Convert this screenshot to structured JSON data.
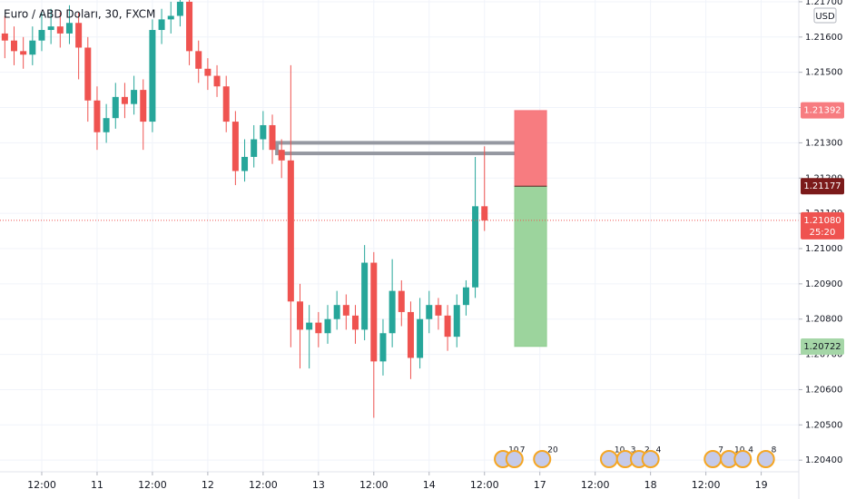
{
  "chart_data": {
    "type": "candlestick",
    "title": "Euro / ABD Doları, 30, FXCM",
    "currency": "USD",
    "up_color": "#26a69a",
    "down_color": "#ef5350",
    "grid": true,
    "xlim": [
      -18.1,
      328.3
    ],
    "ylim": [
      1.20367,
      1.21705
    ],
    "xticks": [
      {
        "value": 0,
        "label": "12:00"
      },
      {
        "value": 24,
        "label": "11"
      },
      {
        "value": 48,
        "label": "12:00"
      },
      {
        "value": 72,
        "label": "12"
      },
      {
        "value": 96,
        "label": "12:00"
      },
      {
        "value": 120,
        "label": "13"
      },
      {
        "value": 144,
        "label": "12:00"
      },
      {
        "value": 168,
        "label": "14"
      },
      {
        "value": 192,
        "label": "12:00"
      },
      {
        "value": 216,
        "label": "17"
      },
      {
        "value": 240,
        "label": "12:00"
      },
      {
        "value": 264,
        "label": "18"
      },
      {
        "value": 288,
        "label": "12:00"
      },
      {
        "value": 312,
        "label": "19"
      }
    ],
    "yticks": [
      {
        "value": 1.204,
        "label": "1.20400"
      },
      {
        "value": 1.205,
        "label": "1.20500"
      },
      {
        "value": 1.206,
        "label": "1.20600"
      },
      {
        "value": 1.207,
        "label": "1.20700"
      },
      {
        "value": 1.208,
        "label": "1.20800"
      },
      {
        "value": 1.209,
        "label": "1.20900"
      },
      {
        "value": 1.21,
        "label": "1.21000"
      },
      {
        "value": 1.211,
        "label": "1.21100"
      },
      {
        "value": 1.212,
        "label": "1.21200"
      },
      {
        "value": 1.213,
        "label": "1.21300"
      },
      {
        "value": 1.214,
        "label": "1.21400"
      },
      {
        "value": 1.215,
        "label": "1.21500"
      },
      {
        "value": 1.216,
        "label": "1.21600"
      },
      {
        "value": 1.217,
        "label": "1.21700"
      }
    ],
    "x": [
      -16,
      -12,
      -8,
      -4,
      0,
      4,
      8,
      12,
      16,
      20,
      24,
      28,
      32,
      36,
      40,
      44,
      48,
      52,
      56,
      60,
      64,
      68,
      72,
      76,
      80,
      84,
      88,
      92,
      96,
      100,
      104,
      108,
      112,
      116,
      120,
      124,
      128,
      132,
      136,
      140,
      144,
      148,
      152,
      156,
      160,
      164,
      168,
      172,
      176,
      180,
      184,
      188,
      192
    ],
    "open": [
      1.2161,
      1.2159,
      1.2156,
      1.2155,
      1.2159,
      1.2162,
      1.2163,
      1.2161,
      1.2164,
      1.2157,
      1.2142,
      1.2133,
      1.2137,
      1.2143,
      1.2141,
      1.2145,
      1.2136,
      1.2162,
      1.2165,
      1.2166,
      1.217,
      1.2156,
      1.2151,
      1.2149,
      1.2146,
      1.2136,
      1.2122,
      1.2126,
      1.2131,
      1.2135,
      1.2128,
      1.2125,
      1.2085,
      1.2077,
      1.2079,
      1.2076,
      1.208,
      1.2084,
      1.2081,
      1.2077,
      1.2096,
      1.2068,
      1.2076,
      1.2088,
      1.2082,
      1.2069,
      1.208,
      1.2084,
      1.2081,
      1.2075,
      1.2084,
      1.2089,
      1.2112
    ],
    "high": [
      1.2166,
      1.2163,
      1.216,
      1.2163,
      1.2167,
      1.2168,
      1.2167,
      1.2169,
      1.2167,
      1.216,
      1.2146,
      1.2141,
      1.2147,
      1.2147,
      1.2149,
      1.2148,
      1.2165,
      1.2168,
      1.217,
      1.2172,
      1.2172,
      1.2159,
      1.2154,
      1.2152,
      1.2149,
      1.2139,
      1.2131,
      1.2135,
      1.2139,
      1.2138,
      1.2131,
      1.2152,
      1.209,
      1.2084,
      1.2082,
      1.2084,
      1.2088,
      1.2087,
      1.2084,
      1.2101,
      1.2099,
      1.208,
      1.2097,
      1.2091,
      1.2085,
      1.2086,
      1.2088,
      1.2086,
      1.2084,
      1.2087,
      1.2091,
      1.2126,
      1.2129
    ],
    "low": [
      1.2154,
      1.2152,
      1.2151,
      1.2152,
      1.2156,
      1.2158,
      1.2157,
      1.2158,
      1.2148,
      1.2136,
      1.2128,
      1.213,
      1.2134,
      1.2137,
      1.2138,
      1.2128,
      1.2133,
      1.2158,
      1.2161,
      1.2163,
      1.2152,
      1.2147,
      1.2145,
      1.2143,
      1.2133,
      1.2118,
      1.2119,
      1.2123,
      1.2128,
      1.2124,
      1.212,
      1.2072,
      1.2066,
      1.2066,
      1.2072,
      1.2073,
      1.2077,
      1.2077,
      1.2073,
      1.2074,
      1.2052,
      1.2064,
      1.2072,
      1.2078,
      1.2063,
      1.2066,
      1.2076,
      1.2077,
      1.2071,
      1.2072,
      1.2081,
      1.2086,
      1.2105
    ],
    "close": [
      1.2159,
      1.2156,
      1.2155,
      1.2159,
      1.2162,
      1.2163,
      1.2161,
      1.2164,
      1.2157,
      1.2142,
      1.2133,
      1.2137,
      1.2143,
      1.2141,
      1.2145,
      1.2136,
      1.2162,
      1.2165,
      1.2166,
      1.217,
      1.2156,
      1.2151,
      1.2149,
      1.2146,
      1.2136,
      1.2122,
      1.2126,
      1.2131,
      1.2135,
      1.2128,
      1.2125,
      1.2085,
      1.2077,
      1.2079,
      1.2076,
      1.208,
      1.2084,
      1.2081,
      1.2077,
      1.2096,
      1.2068,
      1.2076,
      1.2088,
      1.2082,
      1.2069,
      1.208,
      1.2084,
      1.2081,
      1.2075,
      1.2084,
      1.2089,
      1.2112,
      1.2108
    ],
    "current_price": {
      "value": 1.2108,
      "label": "1.21080"
    },
    "countdown": "25:20",
    "zone": {
      "x_start": 102,
      "x_end": 211,
      "top": 1.213,
      "bottom": 1.2127
    },
    "position": {
      "x_start": 205,
      "x_end": 219,
      "stop": 1.21392,
      "entry": 1.21177,
      "target": 1.20722
    },
    "events": [
      {
        "x": 200,
        "count": 10
      },
      {
        "x": 205,
        "count": 7
      },
      {
        "x": 217,
        "count": 20
      },
      {
        "x": 246,
        "count": 10
      },
      {
        "x": 253,
        "count": 3
      },
      {
        "x": 259,
        "count": 2
      },
      {
        "x": 264,
        "count": 4
      },
      {
        "x": 291,
        "count": 7
      },
      {
        "x": 298,
        "count": 10
      },
      {
        "x": 304,
        "count": 4
      },
      {
        "x": 314,
        "count": 8
      }
    ]
  }
}
